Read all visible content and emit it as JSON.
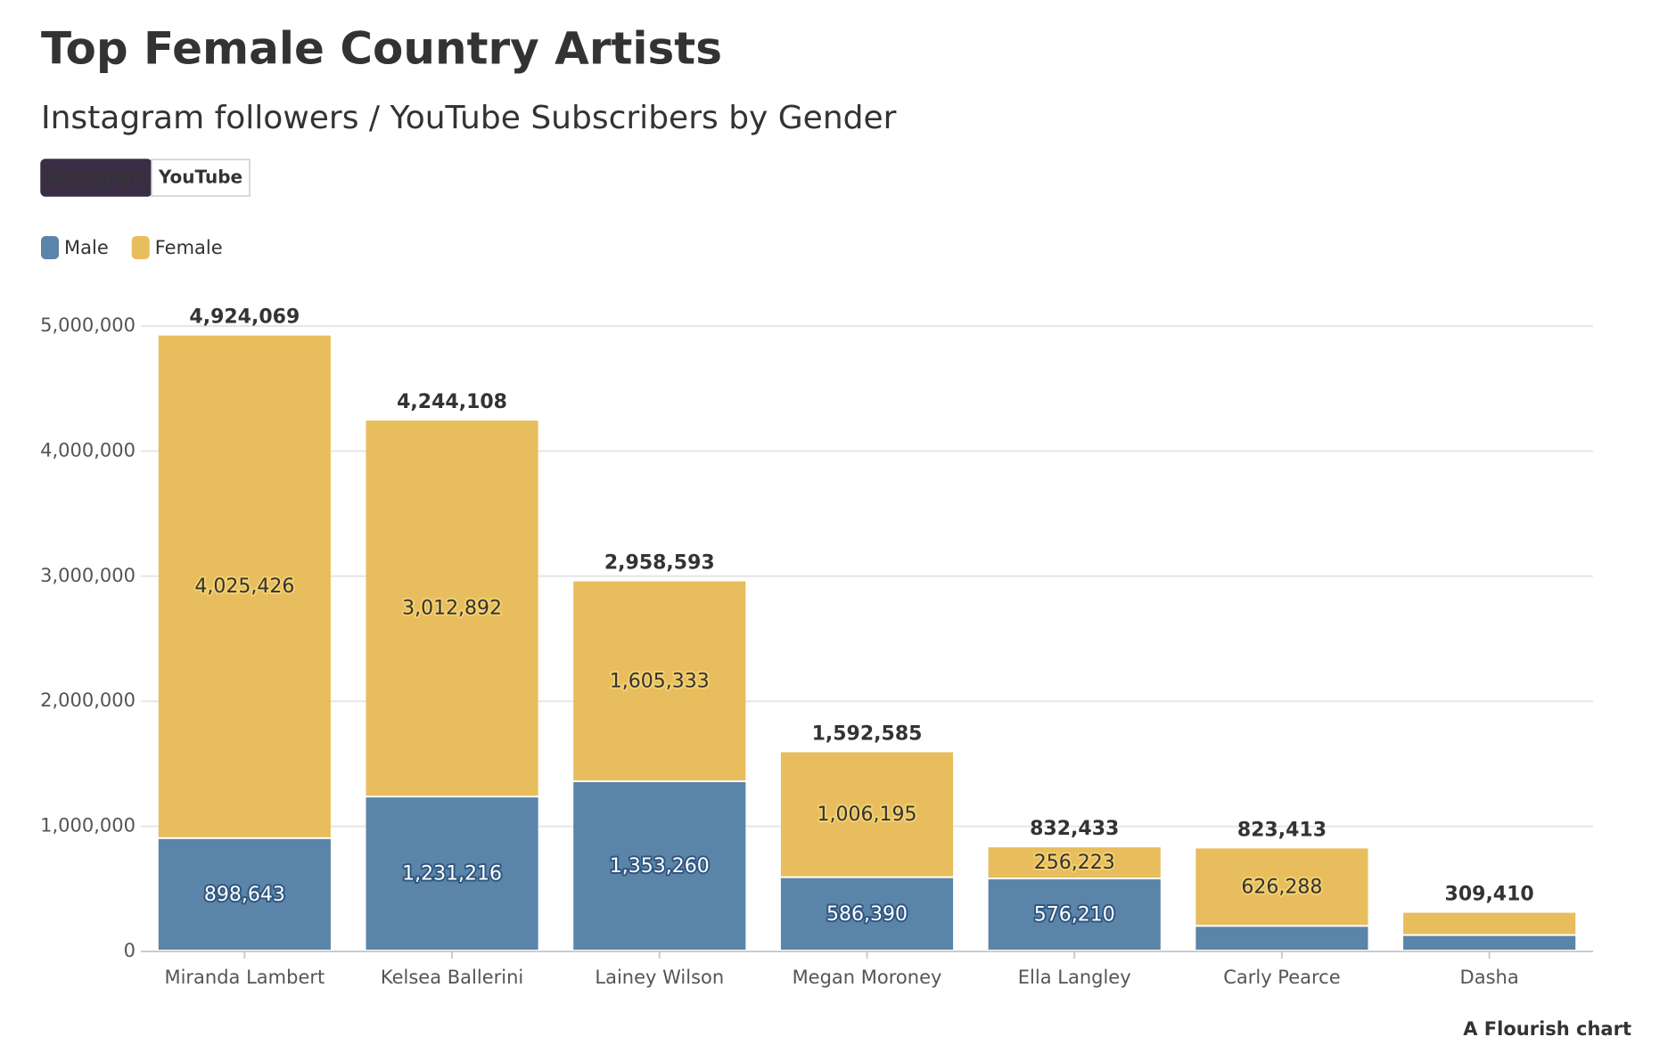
{
  "chart_data": {
    "type": "stacked_bar",
    "title": "Top Female Country Artists",
    "subtitle": "Instagram followers / YouTube Subscribers by Gender",
    "buttons": [
      "Instagram",
      "YouTube"
    ],
    "active_button": 0,
    "categories": [
      "Miranda Lambert",
      "Kelsea Ballerini",
      "Lainey Wilson",
      "Megan Moroney",
      "Ella Langley",
      "Carly Pearce",
      "Dasha"
    ],
    "series": [
      {
        "name": "Male",
        "color": "#5b84a9",
        "values": [
          898643,
          1231216,
          1353260,
          586390,
          576210,
          197125,
          124000
        ],
        "value_labels": [
          "898,643",
          "1,231,216",
          "1,353,260",
          "586,390",
          "576,210",
          null,
          null
        ]
      },
      {
        "name": "Female",
        "color": "#e8bd5d",
        "values": [
          4025426,
          3012892,
          1605333,
          1006195,
          256223,
          626288,
          185410
        ],
        "value_labels": [
          "4,025,426",
          "3,012,892",
          "1,605,333",
          "1,006,195",
          "256,223",
          "626,288",
          null
        ]
      }
    ],
    "totals": [
      4924069,
      4244108,
      2958593,
      1592585,
      832433,
      823413,
      309410
    ],
    "total_labels": [
      "4,924,069",
      "4,244,108",
      "2,958,593",
      "1,592,585",
      "832,433",
      "823,413",
      "309,410"
    ],
    "ylim": [
      0,
      5000000
    ],
    "yticks": [
      0,
      {
        "value": 1000000,
        "label": "1,000,000"
      },
      {
        "value": 2000000,
        "label": "2,000,000"
      },
      {
        "value": 3000000,
        "label": "3,000,000"
      },
      {
        "value": 4000000,
        "label": "4,000,000"
      },
      {
        "value": 5000000,
        "label": "5,000,000"
      }
    ],
    "grid": true,
    "legend": "top-left",
    "credit": "A Flourish chart"
  }
}
